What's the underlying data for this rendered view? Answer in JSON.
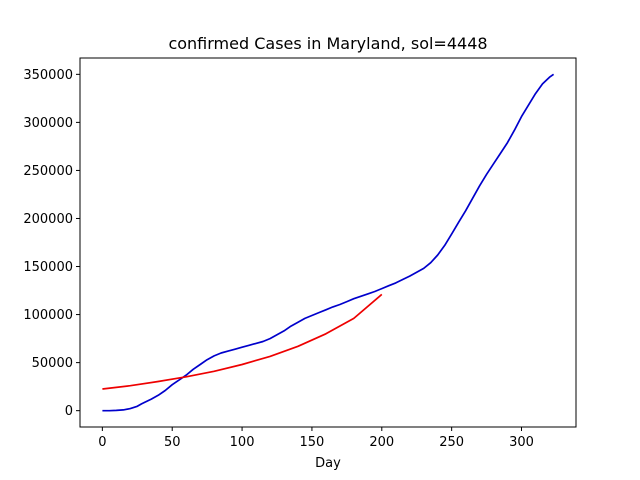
{
  "chart_data": {
    "type": "line",
    "title": "confirmed Cases in Maryland, sol=4448",
    "xlabel": "Day",
    "ylabel": "",
    "xlim": [
      -16,
      339
    ],
    "ylim": [
      -17000,
      367000
    ],
    "xticks": [
      0,
      50,
      100,
      150,
      200,
      250,
      300
    ],
    "yticks": [
      0,
      50000,
      100000,
      150000,
      200000,
      250000,
      300000,
      350000
    ],
    "grid": false,
    "series": [
      {
        "color": "#0000cc",
        "x": [
          0,
          5,
          10,
          15,
          20,
          25,
          28,
          30,
          35,
          40,
          45,
          50,
          55,
          60,
          65,
          70,
          75,
          80,
          85,
          90,
          95,
          100,
          105,
          110,
          115,
          120,
          125,
          130,
          135,
          140,
          145,
          150,
          155,
          160,
          165,
          170,
          175,
          180,
          185,
          190,
          195,
          200,
          205,
          210,
          215,
          220,
          225,
          230,
          235,
          240,
          245,
          250,
          255,
          260,
          265,
          270,
          275,
          280,
          285,
          290,
          295,
          300,
          305,
          310,
          315,
          320,
          323
        ],
        "y": [
          0,
          0,
          300,
          800,
          2200,
          4500,
          7000,
          8500,
          12000,
          16000,
          21000,
          27000,
          32000,
          37000,
          43000,
          48000,
          53000,
          57000,
          60000,
          62000,
          64000,
          66000,
          68000,
          70000,
          72000,
          75000,
          79000,
          83000,
          88000,
          92000,
          96000,
          99000,
          102000,
          105000,
          108000,
          110500,
          113500,
          116500,
          119000,
          121500,
          124000,
          127000,
          130000,
          133000,
          136500,
          140000,
          144000,
          148000,
          154000,
          162000,
          172000,
          184000,
          196000,
          208000,
          221000,
          234000,
          246000,
          257000,
          268000,
          279000,
          292000,
          306000,
          318000,
          330000,
          340000,
          347000,
          350000
        ]
      },
      {
        "color": "#ee0000",
        "x": [
          0,
          20,
          40,
          60,
          80,
          100,
          120,
          140,
          160,
          180,
          200
        ],
        "y": [
          22500,
          26000,
          30300,
          35200,
          41000,
          48000,
          56500,
          67000,
          80000,
          96000,
          121000
        ]
      }
    ]
  }
}
